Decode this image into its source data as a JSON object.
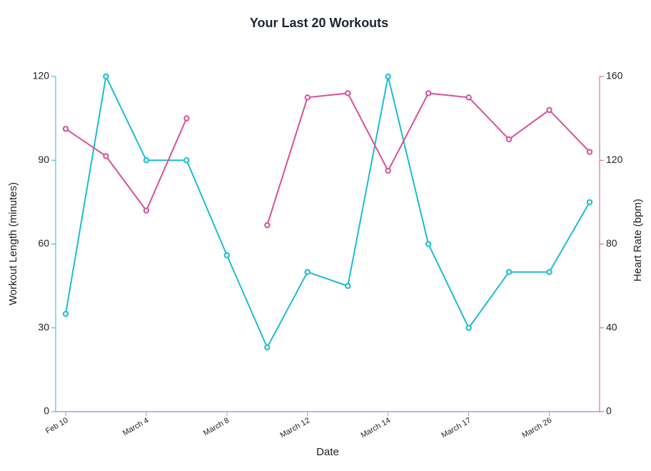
{
  "chart_data": {
    "type": "line",
    "title": "Your Last 20 Workouts",
    "xlabel": "Date",
    "ylabel": "Workout Length (minutes)",
    "y2label": "Heart Rate (bpm)",
    "categories": [
      "Feb 10",
      null,
      "March 4",
      null,
      "March 8",
      null,
      "March 12",
      null,
      "March 14",
      null,
      "March 17",
      null,
      "March 26",
      null
    ],
    "series": [
      {
        "name": "Workout Length (minutes)",
        "color": "#1bbcd2",
        "axis": "y",
        "values": [
          35,
          120,
          90,
          90,
          56,
          23,
          50,
          45,
          120,
          60,
          30,
          50,
          50,
          75
        ]
      },
      {
        "name": "Heart Rate (bpm)",
        "color": "#d6509a",
        "axis": "y2",
        "values": [
          135,
          122,
          96,
          140,
          null,
          89,
          150,
          152,
          115,
          152,
          150,
          130,
          144,
          124
        ]
      }
    ],
    "ylim": [
      0,
      120
    ],
    "yticks": [
      0,
      30,
      60,
      90,
      120
    ],
    "y2lim": [
      0,
      160
    ],
    "y2ticks": [
      0,
      40,
      80,
      120,
      160
    ],
    "xaxis_color": "#a99ad6"
  }
}
